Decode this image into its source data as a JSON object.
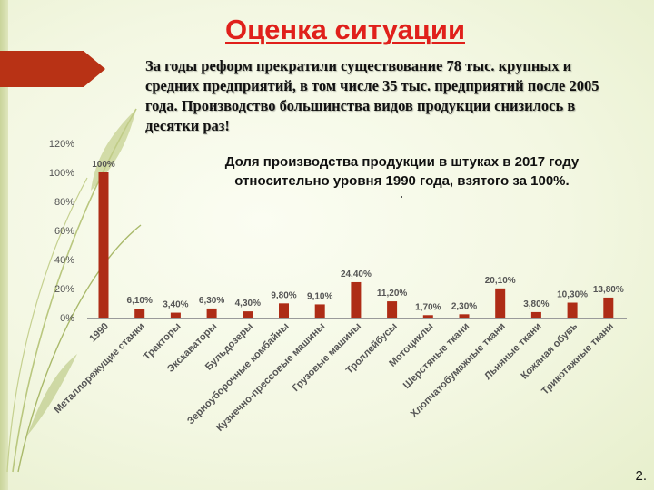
{
  "slide": {
    "title": "Оценка ситуации",
    "intro": "За годы реформ прекратили существование 78 тыс. крупных и средних предприятий, в том числе 35 тыс. предприятий после 2005 года. Производство большинства видов продукции снизилось в десятки раз!",
    "page_number": "2."
  },
  "colors": {
    "title": "#e0201b",
    "bar": "#ae2c16",
    "accent": "#b83215"
  },
  "chart_data": {
    "type": "bar",
    "title": "Доля производства продукции в штуках в 2017 году относительно уровня 1990 года, взятого за 100%.",
    "xlabel": "",
    "ylabel": "",
    "ylim": [
      0,
      120
    ],
    "yticks": [
      "0%",
      "20%",
      "40%",
      "60%",
      "80%",
      "100%",
      "120%"
    ],
    "grid": false,
    "categories": [
      "1990",
      "Металлорежущие станки",
      "Тракторы",
      "Экскаваторы",
      "Бульдозеры",
      "Зерноуборочные комбайны",
      "Кузнечно-прессовые машины",
      "Грузовые машины",
      "Троллейбусы",
      "Мотоциклы",
      "Шерстяные ткани",
      "Хлопчатобумажные ткани",
      "Льняные ткани",
      "Кожаная обувь",
      "Трикотажные ткани"
    ],
    "values": [
      100,
      6.1,
      3.4,
      6.3,
      4.3,
      9.8,
      9.1,
      24.4,
      11.2,
      1.7,
      2.3,
      20.1,
      3.8,
      10.3,
      13.8
    ],
    "data_labels": [
      "100%",
      "6,10%",
      "3,40%",
      "6,30%",
      "4,30%",
      "9,80%",
      "9,10%",
      "24,40%",
      "11,20%",
      "1,70%",
      "2,30%",
      "20,10%",
      "3,80%",
      "10,30%",
      "13,80%"
    ]
  }
}
